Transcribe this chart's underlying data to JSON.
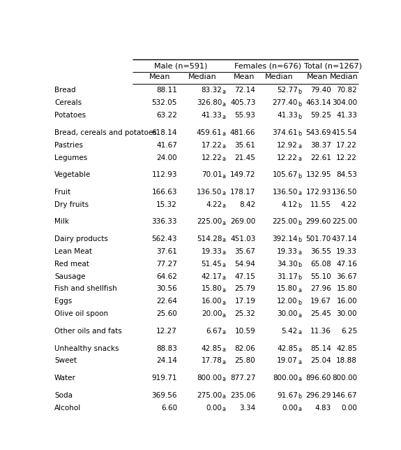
{
  "col_groups": [
    "Male (n=591)",
    "Females (n=676)",
    "Total (n=1267)"
  ],
  "col_headers": [
    "Mean",
    "Median",
    "Mean",
    "Median",
    "Mean",
    "Median"
  ],
  "rows": [
    {
      "label": "Bread",
      "main": [
        "88.11",
        "83.32",
        "72.14",
        "52.77",
        "79.40",
        "70.82"
      ],
      "sub": [
        "",
        "a",
        "",
        "b",
        "",
        ""
      ]
    },
    {
      "label": "Cereals",
      "main": [
        "532.05",
        "326.80",
        "405.73",
        "277.40",
        "463.14",
        "304.00"
      ],
      "sub": [
        "",
        "a",
        "",
        "b",
        "",
        ""
      ]
    },
    {
      "label": "Potatoes",
      "main": [
        "63.22",
        "41.33",
        "55.93",
        "41.33",
        "59.25",
        "41.33"
      ],
      "sub": [
        "",
        "a",
        "",
        "b",
        "",
        ""
      ]
    },
    {
      "label": "Bread, cereals and potatoes",
      "main": [
        "618.14",
        "459.61",
        "481.66",
        "374.61",
        "543.69",
        "415.54"
      ],
      "sub": [
        "",
        "a",
        "",
        "b",
        "",
        ""
      ]
    },
    {
      "label": "Pastries",
      "main": [
        "41.67",
        "17.22",
        "35.61",
        "12.92",
        "38.37",
        "17.22"
      ],
      "sub": [
        "",
        "a",
        "",
        "a",
        "",
        ""
      ]
    },
    {
      "label": "Legumes",
      "main": [
        "24.00",
        "12.22",
        "21.45",
        "12.22",
        "22.61",
        "12.22"
      ],
      "sub": [
        "",
        "a",
        "",
        "a",
        "",
        ""
      ]
    },
    {
      "label": "Vegetable",
      "main": [
        "112.93",
        "70.01",
        "149.72",
        "105.67",
        "132.95",
        "84.53"
      ],
      "sub": [
        "",
        "a",
        "",
        "b",
        "",
        ""
      ]
    },
    {
      "label": "Fruit",
      "main": [
        "166.63",
        "136.50",
        "178.17",
        "136.50",
        "172.93",
        "136.50"
      ],
      "sub": [
        "",
        "a",
        "",
        "a",
        "",
        ""
      ]
    },
    {
      "label": "Dry fruits",
      "main": [
        "15.32",
        "4.22",
        "8.42",
        "4.12",
        "11.55",
        "4.22"
      ],
      "sub": [
        "",
        "a",
        "",
        "b",
        "",
        ""
      ]
    },
    {
      "label": "Milk",
      "main": [
        "336.33",
        "225.00",
        "269.00",
        "225.00",
        "299.60",
        "225.00"
      ],
      "sub": [
        "",
        "a",
        "",
        "b",
        "",
        ""
      ]
    },
    {
      "label": "Dairy products",
      "main": [
        "562.43",
        "514.28",
        "451.03",
        "392.14",
        "501.70",
        "437.14"
      ],
      "sub": [
        "",
        "a",
        "",
        "b",
        "",
        ""
      ]
    },
    {
      "label": "Lean Meat",
      "main": [
        "37.61",
        "19.33",
        "35.67",
        "19.33",
        "36.55",
        "19.33"
      ],
      "sub": [
        "",
        "a",
        "",
        "a",
        "",
        ""
      ]
    },
    {
      "label": "Red meat",
      "main": [
        "77.27",
        "51.45",
        "54.94",
        "34.30",
        "65.08",
        "47.16"
      ],
      "sub": [
        "",
        "a",
        "",
        "b",
        "",
        ""
      ]
    },
    {
      "label": "Sausage",
      "main": [
        "64.62",
        "42.17",
        "47.15",
        "31.17",
        "55.10",
        "36.67"
      ],
      "sub": [
        "",
        "a",
        "",
        "b",
        "",
        ""
      ]
    },
    {
      "label": "Fish and shellfish",
      "main": [
        "30.56",
        "15.80",
        "25.79",
        "15.80",
        "27.96",
        "15.80"
      ],
      "sub": [
        "",
        "a",
        "",
        "a",
        "",
        ""
      ]
    },
    {
      "label": "Eggs",
      "main": [
        "22.64",
        "16.00",
        "17.19",
        "12.00",
        "19.67",
        "16.00"
      ],
      "sub": [
        "",
        "a",
        "",
        "b",
        "",
        ""
      ]
    },
    {
      "label": "Olive oil spoon",
      "main": [
        "25.60",
        "20.00",
        "25.32",
        "30.00",
        "25.45",
        "30.00"
      ],
      "sub": [
        "",
        "a",
        "",
        "a",
        "",
        ""
      ]
    },
    {
      "label": "Other oils and fats",
      "main": [
        "12.27",
        "6.67",
        "10.59",
        "5.42",
        "11.36",
        "6.25"
      ],
      "sub": [
        "",
        "a",
        "",
        "a",
        "",
        ""
      ]
    },
    {
      "label": "Unhealthy snacks",
      "main": [
        "88.83",
        "42.85",
        "82.06",
        "42.85",
        "85.14",
        "42.85"
      ],
      "sub": [
        "",
        "a",
        "",
        "a",
        "",
        ""
      ]
    },
    {
      "label": "Sweet",
      "main": [
        "24.14",
        "17.78",
        "25.80",
        "19.07",
        "25.04",
        "18.88"
      ],
      "sub": [
        "",
        "a",
        "",
        "a",
        "",
        ""
      ]
    },
    {
      "label": "Water",
      "main": [
        "919.71",
        "800.00",
        "877.27",
        "800.00",
        "896.60",
        "800.00"
      ],
      "sub": [
        "",
        "a",
        "",
        "a",
        "",
        ""
      ]
    },
    {
      "label": "Soda",
      "main": [
        "369.56",
        "275.00",
        "235.06",
        "91.67",
        "296.29",
        "146.67"
      ],
      "sub": [
        "",
        "a",
        "",
        "b",
        "",
        ""
      ]
    },
    {
      "label": "Alcohol",
      "main": [
        "6.60",
        "0.00",
        "3.34",
        "0.00",
        "4.83",
        "0.00"
      ],
      "sub": [
        "",
        "a",
        "",
        "a",
        "",
        ""
      ]
    }
  ],
  "blank_before": [
    3,
    6,
    7,
    9,
    10,
    17,
    18,
    20,
    21
  ],
  "bg_color": "#ffffff",
  "text_color": "#000000",
  "line_color": "#000000"
}
